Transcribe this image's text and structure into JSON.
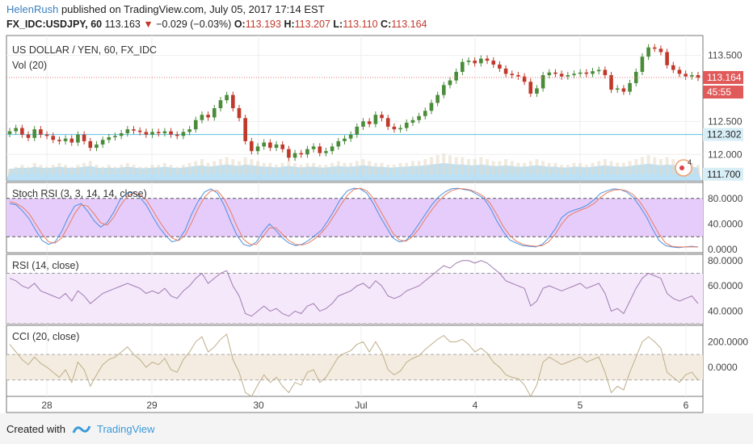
{
  "header": {
    "user": "HelenRush",
    "published": "published on TradingView.com, July 05, 2017 17:14 EST",
    "symbol": "FX_IDC:USDJPY, 60",
    "last": "113.163",
    "arrow": "▼",
    "change": "−0.029 (−0.03%)",
    "o_label": "O:",
    "o_val": "113.193",
    "h_label": "H:",
    "h_val": "113.207",
    "l_label": "L:",
    "l_val": "113.110",
    "c_label": "C:",
    "c_val": "113.164"
  },
  "footer": {
    "created": "Created with",
    "brand": "TradingView"
  },
  "colors": {
    "up": "#4a8c3a",
    "down": "#c0392b",
    "stoch_k": "#4a90e2",
    "stoch_d": "#e67e62",
    "rsi": "#a07bb0",
    "cci": "#bfae8a",
    "price_line": "#e57373",
    "level_line": "#5bc0de",
    "vol_area": "#9fd4f0"
  },
  "chart_data": [
    {
      "type": "candlestick",
      "title": "US DOLLAR / YEN, 60, FX_IDC",
      "volume_label": "Vol (20)",
      "x_ticks": [
        "28",
        "29",
        "30",
        "Jul",
        "4",
        "5",
        "6"
      ],
      "y_ticks": [
        "113.500",
        "112.500",
        "112.000"
      ],
      "ylim": [
        111.6,
        113.8
      ],
      "price_labels": {
        "last": "113.164",
        "countdown": "45:55",
        "level": "112.302",
        "low": "111.700"
      },
      "marker_badge": "4",
      "close_series": [
        112.35,
        112.4,
        112.3,
        112.25,
        112.38,
        112.3,
        112.28,
        112.22,
        112.2,
        112.24,
        112.18,
        112.3,
        112.2,
        112.1,
        112.15,
        112.22,
        112.26,
        112.28,
        112.32,
        112.38,
        112.36,
        112.34,
        112.3,
        112.34,
        112.32,
        112.35,
        112.3,
        112.28,
        112.34,
        112.38,
        112.52,
        112.6,
        112.56,
        112.7,
        112.82,
        112.9,
        112.7,
        112.55,
        112.2,
        112.05,
        112.12,
        112.18,
        112.1,
        112.15,
        112.08,
        111.95,
        112.02,
        112.0,
        112.08,
        112.12,
        112.02,
        112.05,
        112.12,
        112.2,
        112.24,
        112.3,
        112.42,
        112.5,
        112.46,
        112.6,
        112.55,
        112.42,
        112.38,
        112.4,
        112.48,
        112.52,
        112.58,
        112.66,
        112.78,
        112.9,
        113.05,
        113.12,
        113.25,
        113.4,
        113.42,
        113.38,
        113.45,
        113.42,
        113.36,
        113.3,
        113.22,
        113.2,
        113.18,
        113.1,
        112.92,
        113.0,
        113.2,
        113.24,
        113.22,
        113.18,
        113.2,
        113.22,
        113.24,
        113.22,
        113.26,
        113.28,
        113.2,
        112.98,
        113.0,
        112.95,
        113.08,
        113.25,
        113.48,
        113.62,
        113.6,
        113.55,
        113.35,
        113.28,
        113.22,
        113.18,
        113.2,
        113.16
      ],
      "volume_series": [
        3,
        4,
        5,
        4,
        6,
        5,
        4,
        5,
        6,
        5,
        4,
        5,
        6,
        7,
        5,
        4,
        5,
        4,
        5,
        6,
        5,
        4,
        4,
        5,
        5,
        6,
        5,
        4,
        5,
        6,
        7,
        8,
        6,
        7,
        8,
        9,
        8,
        7,
        9,
        8,
        7,
        6,
        6,
        5,
        6,
        7,
        6,
        5,
        6,
        6,
        5,
        5,
        6,
        7,
        6,
        6,
        7,
        8,
        7,
        6,
        6,
        5,
        5,
        6,
        6,
        7,
        7,
        8,
        9,
        10,
        11,
        10,
        9,
        9,
        8,
        8,
        9,
        8,
        7,
        7,
        8,
        7,
        6,
        6,
        7,
        8,
        7,
        6,
        6,
        5,
        5,
        6,
        6,
        5,
        6,
        7,
        8,
        7,
        6,
        6,
        7,
        8,
        9,
        10,
        9,
        8,
        9,
        8,
        7,
        7,
        6,
        5
      ]
    },
    {
      "type": "line",
      "title": "Stoch RSI (3, 3, 14, 14, close)",
      "y_ticks": [
        "80.0000",
        "40.0000",
        "0.0000"
      ],
      "ylim": [
        -5,
        105
      ],
      "bands": [
        20,
        80
      ],
      "series": [
        {
          "values": [
            72,
            70,
            60,
            48,
            30,
            14,
            8,
            12,
            28,
            50,
            68,
            72,
            60,
            45,
            35,
            42,
            58,
            78,
            88,
            90,
            82,
            70,
            52,
            35,
            22,
            12,
            15,
            30,
            55,
            75,
            90,
            95,
            88,
            70,
            45,
            22,
            8,
            5,
            12,
            28,
            40,
            30,
            18,
            10,
            6,
            8,
            14,
            22,
            30,
            45,
            62,
            80,
            92,
            96,
            95,
            88,
            72,
            52,
            35,
            18,
            12,
            14,
            25,
            40,
            55,
            70,
            82,
            90,
            95,
            96,
            94,
            92,
            86,
            80,
            65,
            45,
            28,
            15,
            10,
            6,
            5,
            4,
            8,
            18,
            32,
            50,
            58,
            62,
            65,
            70,
            78,
            88,
            92,
            95,
            94,
            90,
            82,
            68,
            52,
            32,
            14,
            6,
            4,
            3,
            4,
            5,
            4
          ]
        },
        {
          "values": [
            75,
            72,
            66,
            56,
            40,
            24,
            12,
            10,
            18,
            36,
            56,
            70,
            68,
            56,
            42,
            38,
            50,
            68,
            82,
            88,
            86,
            78,
            62,
            45,
            30,
            18,
            14,
            22,
            42,
            64,
            82,
            92,
            92,
            80,
            60,
            36,
            16,
            8,
            8,
            20,
            34,
            34,
            24,
            14,
            8,
            7,
            10,
            17,
            26,
            38,
            54,
            70,
            85,
            94,
            96,
            92,
            80,
            62,
            44,
            26,
            15,
            13,
            20,
            32,
            48,
            62,
            75,
            85,
            92,
            95,
            95,
            93,
            89,
            83,
            72,
            55,
            36,
            22,
            13,
            8,
            6,
            5,
            6,
            12,
            24,
            40,
            52,
            58,
            62,
            66,
            72,
            82,
            89,
            93,
            94,
            92,
            86,
            75,
            60,
            42,
            24,
            10,
            5,
            4,
            4,
            4,
            4
          ]
        }
      ]
    },
    {
      "type": "line",
      "title": "RSI (14, close)",
      "y_ticks": [
        "80.0000",
        "60.0000",
        "40.0000"
      ],
      "ylim": [
        30,
        85
      ],
      "bands": [
        30,
        70
      ],
      "series": [
        {
          "values": [
            66,
            64,
            60,
            58,
            62,
            56,
            54,
            52,
            50,
            54,
            48,
            56,
            52,
            46,
            50,
            54,
            56,
            58,
            60,
            62,
            60,
            58,
            54,
            56,
            54,
            58,
            52,
            50,
            56,
            60,
            66,
            70,
            62,
            66,
            70,
            72,
            60,
            52,
            38,
            36,
            40,
            44,
            40,
            42,
            38,
            36,
            40,
            38,
            44,
            46,
            40,
            42,
            46,
            52,
            54,
            56,
            60,
            62,
            58,
            64,
            60,
            52,
            50,
            52,
            56,
            58,
            60,
            64,
            68,
            72,
            76,
            74,
            78,
            80,
            80,
            78,
            80,
            78,
            74,
            70,
            64,
            62,
            60,
            58,
            44,
            48,
            58,
            60,
            58,
            56,
            58,
            60,
            62,
            58,
            60,
            62,
            54,
            40,
            42,
            38,
            48,
            58,
            66,
            70,
            68,
            66,
            54,
            50,
            48,
            50,
            52,
            46
          ]
        }
      ]
    },
    {
      "type": "line",
      "title": "CCI (20, close)",
      "y_ticks": [
        "200.0000",
        "0.0000"
      ],
      "ylim": [
        -230,
        330
      ],
      "bands": [
        -100,
        100
      ],
      "series": [
        {
          "values": [
            180,
            120,
            60,
            20,
            80,
            30,
            0,
            -40,
            -80,
            -20,
            -120,
            40,
            -20,
            -150,
            -60,
            20,
            60,
            80,
            120,
            160,
            100,
            60,
            0,
            40,
            20,
            70,
            -20,
            -40,
            60,
            120,
            200,
            240,
            120,
            160,
            220,
            260,
            60,
            -40,
            -200,
            -230,
            -140,
            -60,
            -120,
            -80,
            -150,
            -200,
            -120,
            -140,
            -40,
            -20,
            -120,
            -80,
            0,
            80,
            110,
            130,
            180,
            200,
            120,
            200,
            120,
            -20,
            -60,
            -30,
            40,
            70,
            90,
            140,
            180,
            220,
            250,
            200,
            200,
            220,
            180,
            120,
            150,
            110,
            40,
            0,
            -60,
            -80,
            -90,
            -140,
            -230,
            -140,
            40,
            80,
            50,
            20,
            40,
            60,
            80,
            40,
            60,
            80,
            -40,
            -200,
            -150,
            -180,
            -40,
            80,
            200,
            240,
            200,
            150,
            -40,
            -80,
            -120,
            -60,
            -40,
            -100
          ]
        }
      ]
    }
  ]
}
